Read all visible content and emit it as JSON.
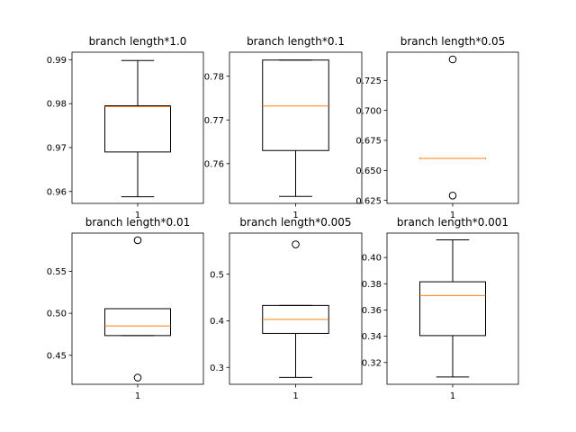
{
  "colors": {
    "box": "#000000",
    "median": "#ff7f0e",
    "background": "#ffffff"
  },
  "chart_data": [
    {
      "type": "boxplot",
      "title": "branch length*1.0",
      "categories": [
        "1"
      ],
      "ylim": [
        0.9573,
        0.9917
      ],
      "yticks": [
        0.96,
        0.97,
        0.98,
        0.99
      ],
      "ytick_labels": [
        "0.96",
        "0.97",
        "0.98",
        "0.99"
      ],
      "box": {
        "whisker_low": 0.9588,
        "q1": 0.969,
        "median": 0.9793,
        "q3": 0.9795,
        "whisker_high": 0.9898
      },
      "fliers": []
    },
    {
      "type": "boxplot",
      "title": "branch length*0.1",
      "categories": [
        "1"
      ],
      "ylim": [
        0.7509,
        0.7855
      ],
      "yticks": [
        0.76,
        0.77,
        0.78
      ],
      "ytick_labels": [
        "0.76",
        "0.77",
        "0.78"
      ],
      "box": {
        "whisker_low": 0.7525,
        "q1": 0.763,
        "median": 0.7732,
        "q3": 0.7837,
        "whisker_high": 0.7837
      },
      "fliers": []
    },
    {
      "type": "boxplot",
      "title": "branch length*0.05",
      "categories": [
        "1"
      ],
      "ylim": [
        0.6225,
        0.7485
      ],
      "yticks": [
        0.625,
        0.65,
        0.675,
        0.7,
        0.725
      ],
      "ytick_labels": [
        "0.625",
        "0.650",
        "0.675",
        "0.700",
        "0.725"
      ],
      "box": {
        "whisker_low": 0.66,
        "q1": 0.66,
        "median": 0.66,
        "q3": 0.66,
        "whisker_high": 0.66
      },
      "fliers": [
        0.7425,
        0.629
      ]
    },
    {
      "type": "boxplot",
      "title": "branch length*0.01",
      "categories": [
        "1"
      ],
      "ylim": [
        0.4155,
        0.5955
      ],
      "yticks": [
        0.45,
        0.5,
        0.55
      ],
      "ytick_labels": [
        "0.45",
        "0.50",
        "0.55"
      ],
      "box": {
        "whisker_low": 0.4735,
        "q1": 0.4735,
        "median": 0.485,
        "q3": 0.5055,
        "whisker_high": 0.5055
      },
      "fliers": [
        0.587,
        0.4235
      ]
    },
    {
      "type": "boxplot",
      "title": "branch length*0.005",
      "categories": [
        "1"
      ],
      "ylim": [
        0.2638,
        0.5882
      ],
      "yticks": [
        0.3,
        0.4,
        0.5
      ],
      "ytick_labels": [
        "0.3",
        "0.4",
        "0.5"
      ],
      "box": {
        "whisker_low": 0.2785,
        "q1": 0.373,
        "median": 0.403,
        "q3": 0.433,
        "whisker_high": 0.433
      },
      "fliers": [
        0.564
      ]
    },
    {
      "type": "boxplot",
      "title": "branch length*0.001",
      "categories": [
        "1"
      ],
      "ylim": [
        0.3034,
        0.4186
      ],
      "yticks": [
        0.32,
        0.34,
        0.36,
        0.38,
        0.4
      ],
      "ytick_labels": [
        "0.32",
        "0.34",
        "0.36",
        "0.38",
        "0.40"
      ],
      "box": {
        "whisker_low": 0.309,
        "q1": 0.3405,
        "median": 0.371,
        "q3": 0.3815,
        "whisker_high": 0.4135
      },
      "fliers": []
    }
  ]
}
